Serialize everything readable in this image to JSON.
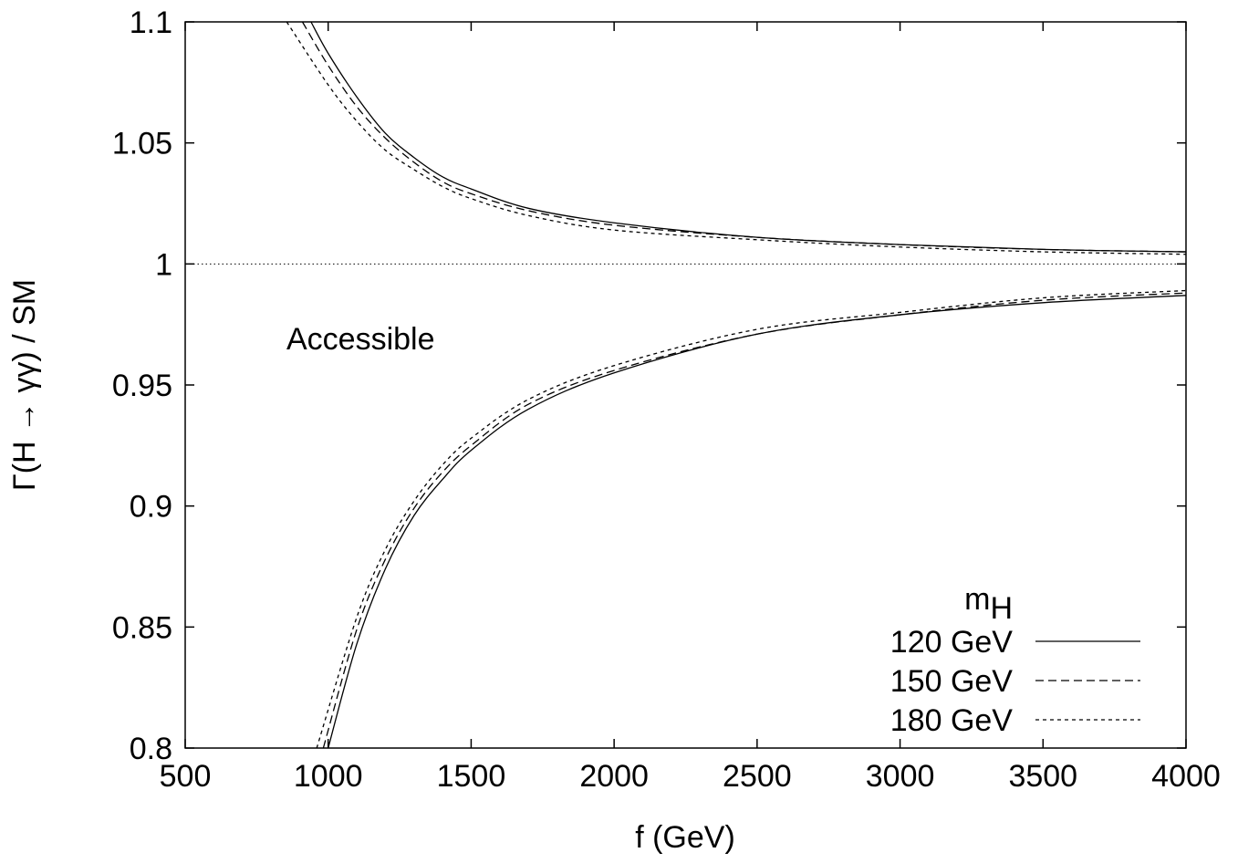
{
  "chart_data": {
    "type": "line",
    "xlabel": "f (GeV)",
    "ylabel": "Γ(H → γγ) / SM",
    "xlim": [
      500,
      4000
    ],
    "ylim": [
      0.8,
      1.1
    ],
    "xticks": [
      500,
      1000,
      1500,
      2000,
      2500,
      3000,
      3500,
      4000
    ],
    "xtick_labels": [
      "500",
      "1000",
      "1500",
      "2000",
      "2500",
      "3000",
      "3500",
      "4000"
    ],
    "yticks": [
      0.8,
      0.85,
      0.9,
      0.95,
      1.0,
      1.05,
      1.1
    ],
    "ytick_labels": [
      "0.8",
      "0.85",
      "0.9",
      "0.95",
      "1",
      "1.05",
      "1.1"
    ],
    "grid": false,
    "reference_line": {
      "y": 1.0,
      "style": "dotted"
    },
    "annotation": "Accessible",
    "legend": {
      "title": "m",
      "title_subscript": "H",
      "placement": "bottom-right"
    },
    "series": [
      {
        "name": "120 GeV",
        "dash": "solid",
        "upper": {
          "x": [
            940,
            1000,
            1100,
            1200,
            1300,
            1400,
            1500,
            1700,
            2000,
            2500,
            3000,
            3500,
            4000
          ],
          "y": [
            1.1,
            1.087,
            1.069,
            1.054,
            1.044,
            1.036,
            1.031,
            1.023,
            1.017,
            1.011,
            1.008,
            1.006,
            1.005
          ]
        },
        "lower": {
          "x": [
            1000,
            1100,
            1200,
            1300,
            1400,
            1500,
            1700,
            2000,
            2500,
            3000,
            3500,
            4000
          ],
          "y": [
            0.8,
            0.843,
            0.874,
            0.896,
            0.911,
            0.923,
            0.94,
            0.955,
            0.971,
            0.979,
            0.984,
            0.987
          ]
        }
      },
      {
        "name": "150 GeV",
        "dash": "long-dash",
        "upper": {
          "x": [
            910,
            1000,
            1100,
            1200,
            1300,
            1400,
            1500,
            1700,
            2000,
            2500,
            3000,
            3500,
            4000
          ],
          "y": [
            1.1,
            1.082,
            1.065,
            1.052,
            1.042,
            1.034,
            1.029,
            1.022,
            1.016,
            1.011,
            1.008,
            1.006,
            1.005
          ]
        },
        "lower": {
          "x": [
            983,
            1100,
            1200,
            1300,
            1400,
            1500,
            1700,
            2000,
            2500,
            3000,
            3500,
            4000
          ],
          "y": [
            0.8,
            0.849,
            0.878,
            0.899,
            0.914,
            0.925,
            0.942,
            0.956,
            0.971,
            0.979,
            0.985,
            0.988
          ]
        }
      },
      {
        "name": "180 GeV",
        "dash": "short-dash",
        "upper": {
          "x": [
            855,
            1000,
            1100,
            1200,
            1300,
            1400,
            1500,
            1700,
            2000,
            2500,
            3000,
            3500,
            4000
          ],
          "y": [
            1.1,
            1.074,
            1.059,
            1.047,
            1.039,
            1.032,
            1.027,
            1.02,
            1.014,
            1.01,
            1.007,
            1.005,
            1.004
          ]
        },
        "lower": {
          "x": [
            960,
            1100,
            1200,
            1300,
            1400,
            1500,
            1700,
            2000,
            2500,
            3000,
            3500,
            4000
          ],
          "y": [
            0.8,
            0.854,
            0.882,
            0.902,
            0.917,
            0.928,
            0.944,
            0.958,
            0.973,
            0.98,
            0.986,
            0.989
          ]
        }
      }
    ]
  }
}
